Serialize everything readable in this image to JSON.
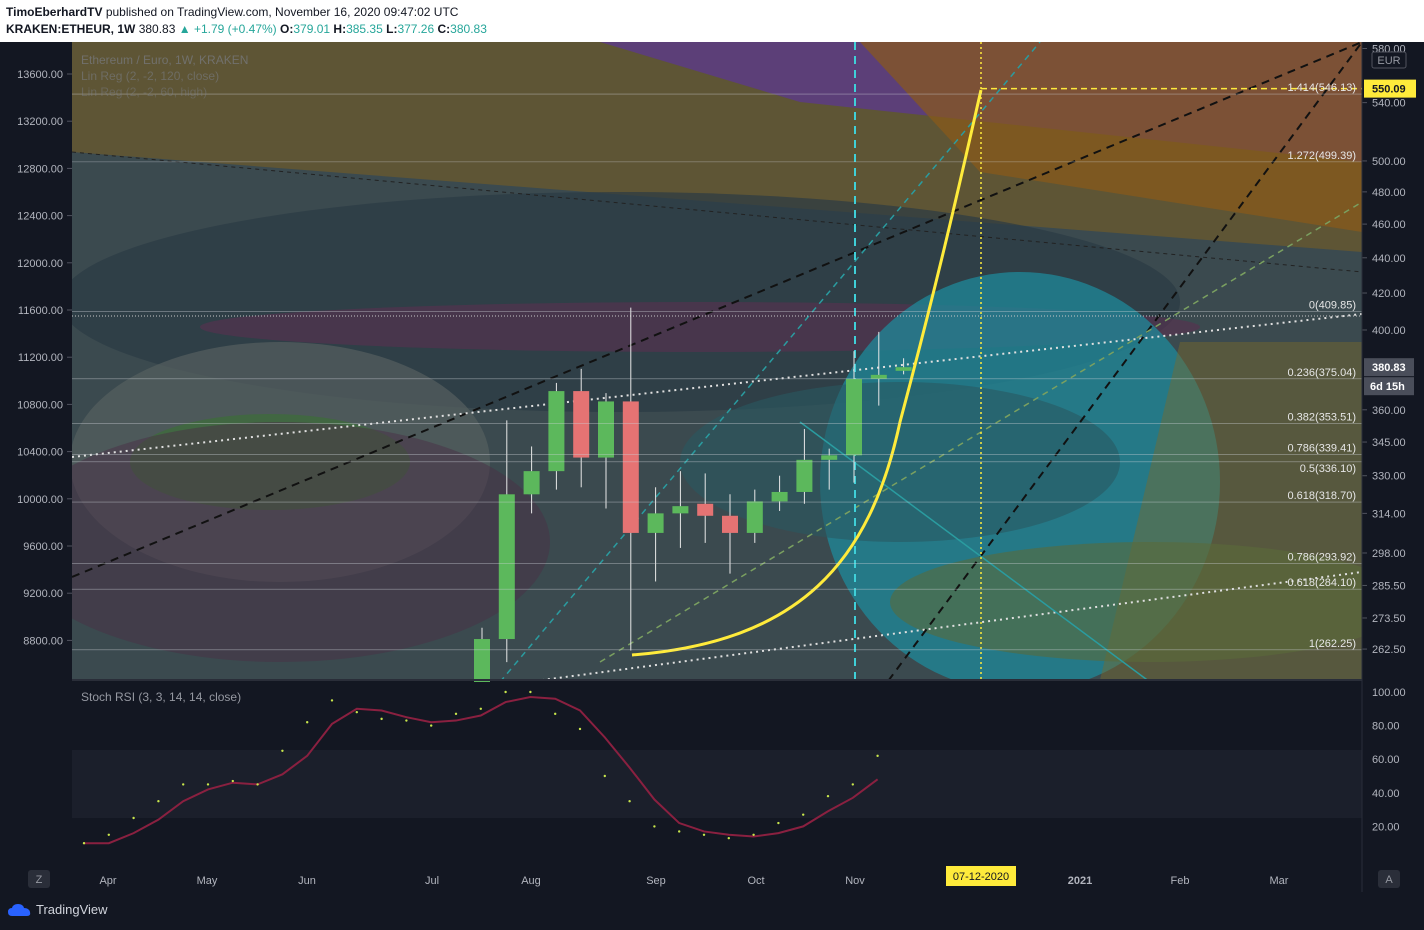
{
  "header": {
    "author": "TimoEberhardTV",
    "published_text": "published on TradingView.com, November 16, 2020 09:47:02 UTC",
    "symbol": "KRAKEN:ETHEUR, 1W",
    "last": "380.83",
    "change": "▲ +1.79 (+0.47%)",
    "o_label": "O:",
    "o_value": "379.01",
    "h_label": "H:",
    "h_value": "385.35",
    "l_label": "L:",
    "l_value": "377.26",
    "c_label": "C:",
    "c_value": "380.83"
  },
  "chart_data": {
    "type": "candlestick",
    "title": "Ethereum / Euro, 1W, KRAKEN",
    "indicator_labels": [
      "Lin Reg (2, -2, 120, close)",
      "Lin Reg (2, -2, 60, high)"
    ],
    "currency": "EUR",
    "left_axis_ticks": [
      "13600.00",
      "13200.00",
      "12800.00",
      "12400.00",
      "12000.00",
      "11600.00",
      "11200.00",
      "10800.00",
      "10400.00",
      "10000.00",
      "9600.00",
      "9200.00",
      "8800.00"
    ],
    "right_axis_ticks": [
      "580.00",
      "540.00",
      "500.00",
      "480.00",
      "460.00",
      "440.00",
      "420.00",
      "400.00",
      "360.00",
      "345.00",
      "330.00",
      "314.00",
      "298.00",
      "285.50",
      "273.50",
      "262.50"
    ],
    "x_labels": [
      "Apr",
      "May",
      "Jun",
      "Jul",
      "Aug",
      "Sep",
      "Oct",
      "Nov",
      "2021",
      "Feb",
      "Mar"
    ],
    "x_highlight": "07-12-2020",
    "price_scale": "log",
    "price_range": [
      252,
      585
    ],
    "candles": [
      {
        "o": 236,
        "h": 270,
        "l": 228,
        "c": 266
      },
      {
        "o": 266,
        "h": 355,
        "l": 258,
        "c": 322
      },
      {
        "o": 322,
        "h": 343,
        "l": 314,
        "c": 332
      },
      {
        "o": 332,
        "h": 373,
        "l": 324,
        "c": 369
      },
      {
        "o": 369,
        "h": 380,
        "l": 325,
        "c": 338
      },
      {
        "o": 338,
        "h": 368,
        "l": 316,
        "c": 364
      },
      {
        "o": 364,
        "h": 412,
        "l": 262,
        "c": 306
      },
      {
        "o": 306,
        "h": 325,
        "l": 287,
        "c": 314
      },
      {
        "o": 314,
        "h": 332,
        "l": 300,
        "c": 317
      },
      {
        "o": 318,
        "h": 331,
        "l": 302,
        "c": 313
      },
      {
        "o": 313,
        "h": 322,
        "l": 290,
        "c": 306
      },
      {
        "o": 306,
        "h": 324,
        "l": 302,
        "c": 319
      },
      {
        "o": 319,
        "h": 330,
        "l": 315,
        "c": 323
      },
      {
        "o": 323,
        "h": 351,
        "l": 318,
        "c": 337
      },
      {
        "o": 337,
        "h": 342,
        "l": 324,
        "c": 339
      },
      {
        "o": 339,
        "h": 389,
        "l": 327,
        "c": 375
      },
      {
        "o": 375,
        "h": 399,
        "l": 362,
        "c": 377
      },
      {
        "o": 379.01,
        "h": 385.35,
        "l": 377.26,
        "c": 380.83
      }
    ],
    "fib_levels": [
      {
        "label": "1.414(546.13)",
        "value": 546.13
      },
      {
        "label": "1.272(499.39)",
        "value": 499.39
      },
      {
        "label": "0(409.85)",
        "value": 409.85
      },
      {
        "label": "0.236(375.04)",
        "value": 375.04
      },
      {
        "label": "0.382(353.51)",
        "value": 353.51
      },
      {
        "label": "0.786(339.41)",
        "value": 339.41
      },
      {
        "label": "0.5(336.10)",
        "value": 336.1
      },
      {
        "label": "0.618(318.70)",
        "value": 318.7
      },
      {
        "label": "0.786(293.92)",
        "value": 293.92
      },
      {
        "label": "0.618(284.10)",
        "value": 284.1
      },
      {
        "label": "1(262.25)",
        "value": 262.25
      }
    ],
    "target_price": "550.09",
    "target_value": 550.09,
    "last_price_label": "380.83",
    "countdown": "6d 15h",
    "stoch_title": "Stoch RSI (3, 3, 14, 14, close)",
    "stoch_ticks": [
      "100.00",
      "80.00",
      "60.00",
      "40.00",
      "20.00"
    ],
    "stoch_k": [
      10,
      15,
      25,
      35,
      45,
      45,
      47,
      45,
      65,
      82,
      95,
      88,
      84,
      83,
      80,
      87,
      90,
      100,
      100,
      87,
      78,
      50,
      35,
      20,
      17,
      15,
      13,
      15,
      22,
      27,
      38,
      45,
      62
    ],
    "stoch_d": [
      10,
      10,
      16,
      24,
      35,
      42,
      46,
      45,
      51,
      62,
      81,
      90,
      89,
      85,
      82,
      83,
      86,
      94,
      97,
      96,
      89,
      73,
      55,
      36,
      22,
      17,
      15,
      14,
      16,
      20,
      29,
      37,
      48
    ],
    "colors": {
      "up": "#26a69a",
      "candle_up": "#5cb85c",
      "candle_down": "#e57373",
      "curve": "#ffeb3b",
      "stoch": "#8a2040"
    }
  },
  "footer": {
    "logo_text": "TradingView",
    "tz_button": "Z",
    "auto_button": "A"
  }
}
